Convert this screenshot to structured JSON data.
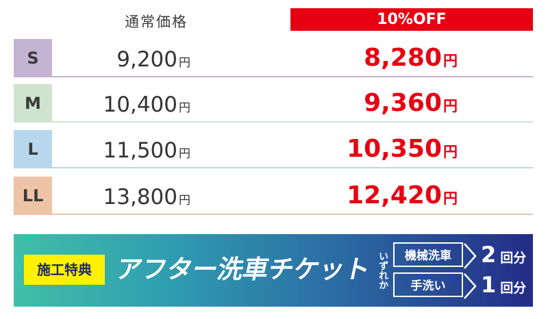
{
  "header": {
    "regular_label": "通常価格",
    "discount_label": "10%OFF"
  },
  "currency_unit": "円",
  "sizes": [
    {
      "size": "S",
      "regular": "9,200",
      "discounted": "8,280",
      "badge_color": "#c4b3d3",
      "line_color": "#c4b3d3"
    },
    {
      "size": "M",
      "regular": "10,400",
      "discounted": "9,360",
      "badge_color": "#cfe3cf",
      "line_color": "#cfe3cf"
    },
    {
      "size": "L",
      "regular": "11,500",
      "discounted": "10,350",
      "badge_color": "#b7d8ec",
      "line_color": "#b7d8ec"
    },
    {
      "size": "LL",
      "regular": "13,800",
      "discounted": "12,420",
      "badge_color": "#efc3a6",
      "line_color": "#efc3a6"
    }
  ],
  "banner": {
    "special_label": "施工特典",
    "title": "アフター洗車チケット",
    "either_label": "いずれか",
    "options": [
      {
        "label": "機械洗車",
        "count": "2",
        "unit": "回分"
      },
      {
        "label": "手洗い",
        "count": "1",
        "unit": "回分"
      }
    ]
  },
  "colors": {
    "accent_red": "#e60012",
    "special_yellow": "#fff100"
  }
}
